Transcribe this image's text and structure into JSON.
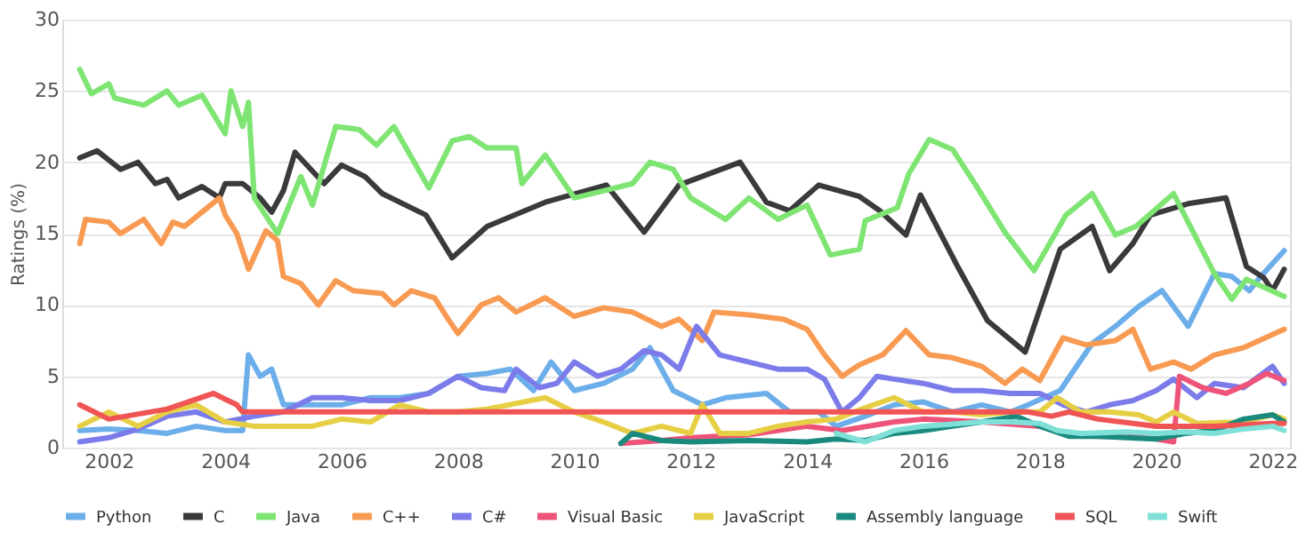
{
  "chart_data": {
    "type": "line",
    "ylabel": "Ratings (%)",
    "xlim": [
      2001.2,
      2022.3
    ],
    "xticks": [
      2002,
      2004,
      2006,
      2008,
      2010,
      2012,
      2014,
      2016,
      2018,
      2020,
      2022
    ],
    "ylim": [
      0,
      30
    ],
    "yticks": [
      0,
      5,
      10,
      15,
      20,
      25,
      30
    ],
    "grid": "y",
    "legend": "bottom",
    "marker": "none",
    "line_style": "solid",
    "series": [
      {
        "name": "Python",
        "color": "#6caeea",
        "x": [
          2001.5,
          2002.0,
          2002.5,
          2003.0,
          2003.5,
          2004.0,
          2004.3,
          2004.4,
          2004.6,
          2004.8,
          2005.0,
          2005.5,
          2006.0,
          2006.5,
          2007.0,
          2007.5,
          2008.0,
          2008.5,
          2008.9,
          2009.3,
          2009.6,
          2010.0,
          2010.5,
          2011.0,
          2011.3,
          2011.7,
          2012.2,
          2012.6,
          2013.3,
          2013.7,
          2014.2,
          2014.5,
          2015.0,
          2015.5,
          2016.0,
          2016.5,
          2017.0,
          2017.5,
          2017.8,
          2018.35,
          2018.9,
          2019.3,
          2019.7,
          2020.1,
          2020.55,
          2021.0,
          2021.3,
          2021.6,
          2021.8,
          2022.2
        ],
        "values": [
          1.2,
          1.3,
          1.2,
          1.0,
          1.5,
          1.2,
          1.2,
          6.5,
          5.0,
          5.5,
          3.0,
          3.0,
          3.0,
          3.5,
          3.5,
          3.8,
          5.0,
          5.2,
          5.5,
          4.0,
          6.0,
          4.0,
          4.5,
          5.5,
          7.0,
          4.0,
          3.0,
          3.5,
          3.8,
          2.5,
          2.5,
          1.5,
          2.2,
          3.0,
          3.2,
          2.5,
          3.0,
          2.5,
          3.0,
          4.0,
          7.3,
          8.5,
          9.9,
          11.0,
          8.5,
          12.2,
          12.0,
          11.0,
          12.0,
          13.8
        ]
      },
      {
        "name": "C",
        "color": "#3a3a3c",
        "x": [
          2001.5,
          2001.8,
          2002.2,
          2002.5,
          2002.8,
          2003.0,
          2003.2,
          2003.6,
          2003.9,
          2004.0,
          2004.3,
          2004.6,
          2004.8,
          2005.0,
          2005.2,
          2005.7,
          2006.0,
          2006.4,
          2006.7,
          2007.45,
          2007.9,
          2008.5,
          2009.5,
          2010.55,
          2011.2,
          2011.8,
          2012.85,
          2013.3,
          2013.7,
          2014.2,
          2014.9,
          2015.25,
          2015.7,
          2015.95,
          2016.6,
          2017.1,
          2017.75,
          2018.35,
          2018.9,
          2019.2,
          2019.6,
          2019.9,
          2020.55,
          2021.2,
          2021.55,
          2021.85,
          2022.0,
          2022.2
        ],
        "values": [
          20.3,
          20.8,
          19.5,
          20.0,
          18.5,
          18.8,
          17.5,
          18.3,
          17.5,
          18.5,
          18.5,
          17.5,
          16.5,
          18.0,
          20.7,
          18.5,
          19.8,
          19.0,
          17.8,
          16.3,
          13.3,
          15.5,
          17.2,
          18.4,
          15.1,
          18.4,
          20.0,
          17.2,
          16.6,
          18.4,
          17.6,
          16.6,
          14.9,
          17.7,
          12.6,
          8.9,
          6.7,
          13.9,
          15.5,
          12.4,
          14.3,
          16.3,
          17.1,
          17.5,
          12.7,
          11.9,
          11.0,
          12.5
        ]
      },
      {
        "name": "Java",
        "color": "#7ee472",
        "x": [
          2001.5,
          2001.7,
          2002.0,
          2002.1,
          2002.6,
          2003.0,
          2003.2,
          2003.6,
          2004.0,
          2004.1,
          2004.3,
          2004.4,
          2004.5,
          2004.9,
          2005.1,
          2005.3,
          2005.5,
          2005.9,
          2006.3,
          2006.6,
          2006.9,
          2007.5,
          2007.9,
          2008.2,
          2008.5,
          2009.0,
          2009.1,
          2009.5,
          2010.0,
          2010.5,
          2011.0,
          2011.3,
          2011.7,
          2012.0,
          2012.6,
          2013.0,
          2013.5,
          2014.0,
          2014.4,
          2014.9,
          2015.0,
          2015.55,
          2015.75,
          2016.1,
          2016.5,
          2016.9,
          2017.4,
          2017.9,
          2018.45,
          2018.9,
          2019.3,
          2019.65,
          2020.3,
          2021.0,
          2021.3,
          2021.55,
          2022.2
        ],
        "values": [
          26.5,
          24.8,
          25.5,
          24.5,
          24.0,
          25.0,
          24.0,
          24.7,
          22.0,
          25.0,
          22.5,
          24.2,
          17.5,
          15.0,
          17.0,
          19.0,
          17.0,
          22.5,
          22.3,
          21.2,
          22.5,
          18.2,
          21.5,
          21.8,
          21.0,
          21.0,
          18.5,
          20.5,
          17.5,
          18.0,
          18.5,
          20.0,
          19.5,
          17.5,
          16.0,
          17.5,
          16.0,
          17.0,
          13.5,
          13.9,
          15.9,
          16.8,
          19.2,
          21.6,
          20.9,
          18.4,
          15.1,
          12.4,
          16.3,
          17.8,
          14.9,
          15.5,
          17.8,
          12.2,
          10.4,
          11.8,
          10.6
        ]
      },
      {
        "name": "C++",
        "color": "#f89a52",
        "x": [
          2001.5,
          2001.6,
          2002.0,
          2002.2,
          2002.6,
          2002.9,
          2003.1,
          2003.3,
          2003.6,
          2003.9,
          2004.0,
          2004.2,
          2004.4,
          2004.7,
          2004.9,
          2005.0,
          2005.3,
          2005.6,
          2005.9,
          2006.2,
          2006.7,
          2006.9,
          2007.2,
          2007.6,
          2007.8,
          2008.0,
          2008.4,
          2008.7,
          2009.0,
          2009.5,
          2010.0,
          2010.5,
          2011.0,
          2011.5,
          2011.8,
          2012.2,
          2012.4,
          2013.0,
          2013.6,
          2014.0,
          2014.3,
          2014.6,
          2014.9,
          2015.3,
          2015.7,
          2016.1,
          2016.5,
          2017.0,
          2017.4,
          2017.7,
          2018.0,
          2018.4,
          2018.8,
          2019.3,
          2019.6,
          2019.9,
          2020.3,
          2020.6,
          2021.0,
          2021.5,
          2022.2
        ],
        "values": [
          14.3,
          16.0,
          15.8,
          15.0,
          16.0,
          14.3,
          15.8,
          15.5,
          16.5,
          17.5,
          16.3,
          15.0,
          12.5,
          15.2,
          14.5,
          12.0,
          11.5,
          10.0,
          11.7,
          11.0,
          10.8,
          10.0,
          11.0,
          10.5,
          9.2,
          8.0,
          10.0,
          10.5,
          9.5,
          10.5,
          9.2,
          9.8,
          9.5,
          8.5,
          9.0,
          7.5,
          9.5,
          9.3,
          9.0,
          8.3,
          6.5,
          5.0,
          5.8,
          6.5,
          8.2,
          6.5,
          6.3,
          5.7,
          4.5,
          5.5,
          4.7,
          7.7,
          7.2,
          7.5,
          8.3,
          5.5,
          6.0,
          5.5,
          6.5,
          7.0,
          8.3
        ]
      },
      {
        "name": "C#",
        "color": "#7b7cea",
        "x": [
          2001.5,
          2002.0,
          2002.5,
          2003.0,
          2003.5,
          2004.0,
          2004.5,
          2005.0,
          2005.5,
          2006.0,
          2006.5,
          2007.0,
          2007.5,
          2008.0,
          2008.4,
          2008.8,
          2009.0,
          2009.4,
          2009.7,
          2010.0,
          2010.4,
          2010.8,
          2011.2,
          2011.5,
          2011.8,
          2012.1,
          2012.5,
          2013.0,
          2013.5,
          2014.0,
          2014.3,
          2014.6,
          2014.9,
          2015.2,
          2015.5,
          2016.0,
          2016.5,
          2017.0,
          2017.5,
          2018.0,
          2018.4,
          2018.8,
          2019.2,
          2019.6,
          2020.0,
          2020.3,
          2020.7,
          2021.0,
          2021.5,
          2022.0,
          2022.2
        ],
        "values": [
          0.4,
          0.7,
          1.3,
          2.2,
          2.5,
          1.8,
          2.2,
          2.5,
          3.5,
          3.5,
          3.3,
          3.3,
          3.8,
          5.0,
          4.2,
          4.0,
          5.5,
          4.2,
          4.5,
          6.0,
          5.0,
          5.5,
          6.8,
          6.5,
          5.5,
          8.5,
          6.5,
          6.0,
          5.5,
          5.5,
          4.8,
          2.5,
          3.5,
          5.0,
          4.8,
          4.5,
          4.0,
          4.0,
          3.8,
          3.8,
          3.0,
          2.5,
          3.0,
          3.3,
          4.0,
          4.8,
          3.5,
          4.5,
          4.2,
          5.7,
          4.5
        ]
      },
      {
        "name": "Visual Basic",
        "color": "#ee5479",
        "x": [
          2010.8,
          2011.5,
          2012.0,
          2013.0,
          2014.0,
          2014.6,
          2015.5,
          2016.0,
          2017.0,
          2018.0,
          2018.5,
          2019.0,
          2019.5,
          2020.0,
          2020.3,
          2020.4,
          2020.8,
          2021.2,
          2021.6,
          2021.9,
          2022.2
        ],
        "values": [
          0.3,
          0.5,
          0.7,
          0.9,
          1.5,
          1.2,
          1.8,
          2.0,
          1.8,
          1.5,
          0.9,
          0.8,
          0.8,
          0.6,
          0.4,
          5.0,
          4.2,
          3.8,
          4.5,
          5.2,
          4.7
        ]
      },
      {
        "name": "JavaScript",
        "color": "#e6cf45",
        "x": [
          2001.5,
          2002.0,
          2002.5,
          2003.0,
          2003.5,
          2004.0,
          2004.5,
          2005.0,
          2005.5,
          2006.0,
          2006.5,
          2007.0,
          2007.5,
          2008.0,
          2008.5,
          2009.5,
          2010.0,
          2010.5,
          2011.0,
          2011.5,
          2012.0,
          2012.2,
          2012.5,
          2013.0,
          2013.5,
          2014.0,
          2014.5,
          2015.0,
          2015.5,
          2016.0,
          2016.5,
          2017.0,
          2017.5,
          2018.0,
          2018.3,
          2018.7,
          2019.2,
          2019.7,
          2020.0,
          2020.3,
          2020.7,
          2021.5,
          2022.0,
          2022.2
        ],
        "values": [
          1.5,
          2.5,
          1.5,
          2.5,
          3.0,
          1.8,
          1.5,
          1.5,
          1.5,
          2.0,
          1.8,
          3.0,
          2.5,
          2.5,
          2.7,
          3.5,
          2.5,
          1.8,
          1.0,
          1.5,
          1.0,
          3.0,
          1.0,
          1.0,
          1.5,
          1.8,
          2.0,
          2.8,
          3.5,
          2.5,
          2.5,
          2.3,
          2.5,
          2.5,
          3.5,
          2.5,
          2.5,
          2.3,
          1.8,
          2.5,
          1.7,
          1.8,
          2.3,
          2.0
        ]
      },
      {
        "name": "Assembly language",
        "color": "#1b8a7e",
        "x": [
          2010.8,
          2011.0,
          2011.5,
          2012.0,
          2013.0,
          2014.0,
          2014.5,
          2015.0,
          2015.5,
          2016.0,
          2016.5,
          2017.0,
          2017.6,
          2018.0,
          2018.5,
          2019.0,
          2019.5,
          2020.0,
          2020.5,
          2021.0,
          2021.5,
          2022.0,
          2022.2
        ],
        "values": [
          0.3,
          1.0,
          0.5,
          0.4,
          0.5,
          0.4,
          0.6,
          0.5,
          1.0,
          1.2,
          1.5,
          1.8,
          2.2,
          1.5,
          0.8,
          0.8,
          0.7,
          0.6,
          1.0,
          1.2,
          2.0,
          2.3,
          1.8
        ]
      },
      {
        "name": "SQL",
        "color": "#f05454",
        "x": [
          2001.5,
          2002.0,
          2003.0,
          2003.8,
          2004.2,
          2004.3,
          2017.8,
          2018.2,
          2018.5,
          2019.0,
          2020.0,
          2021.0,
          2022.0,
          2022.2
        ],
        "values": [
          3.0,
          2.0,
          2.7,
          3.8,
          3.0,
          2.5,
          2.5,
          2.2,
          2.5,
          2.0,
          1.5,
          1.5,
          1.7,
          1.7
        ]
      },
      {
        "name": "Swift",
        "color": "#7fe0d8",
        "x": [
          2014.5,
          2015.0,
          2015.5,
          2016.0,
          2017.0,
          2017.5,
          2018.0,
          2018.3,
          2018.7,
          2019.5,
          2020.0,
          2020.5,
          2021.0,
          2021.5,
          2022.0,
          2022.2
        ],
        "values": [
          1.0,
          0.4,
          1.2,
          1.5,
          1.8,
          1.8,
          1.7,
          1.2,
          1.0,
          1.1,
          1.0,
          1.1,
          1.0,
          1.3,
          1.5,
          1.2
        ]
      }
    ]
  }
}
